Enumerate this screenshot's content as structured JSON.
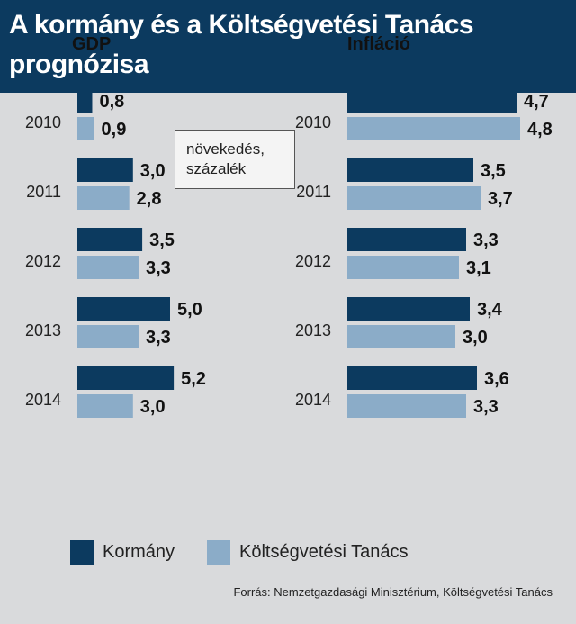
{
  "title": "A kormány és a Költségvetési Tanács prognózisa",
  "unit_note": [
    "növekedés,",
    "százalék"
  ],
  "colors": {
    "header": "#0c3a5f",
    "kormany": "#0c3a5f",
    "tanacs": "#8bacc8",
    "background": "#d9dadc"
  },
  "legend": [
    {
      "label": "Kormány",
      "color": "#0c3a5f"
    },
    {
      "label": "Költségvetési Tanács",
      "color": "#8bacc8"
    }
  ],
  "source": "Forrás: Nemzetgazdasági Minisztérium, Költségvetési Tanács",
  "chart_data": [
    {
      "type": "bar",
      "orientation": "horizontal",
      "title": "GDP",
      "categories": [
        "2010",
        "2011",
        "2012",
        "2013",
        "2014"
      ],
      "series": [
        {
          "name": "Kormány",
          "values": [
            0.8,
            3.0,
            3.5,
            5.0,
            5.2
          ],
          "labels": [
            "0,8",
            "3,0",
            "3,5",
            "5,0",
            "5,2"
          ]
        },
        {
          "name": "Költségvetési Tanács",
          "values": [
            0.9,
            2.8,
            3.3,
            3.3,
            3.0
          ],
          "labels": [
            "0,9",
            "2,8",
            "3,3",
            "3,3",
            "3,0"
          ]
        }
      ]
    },
    {
      "type": "bar",
      "orientation": "horizontal",
      "title": "Infláció",
      "categories": [
        "2010",
        "2011",
        "2012",
        "2013",
        "2014"
      ],
      "series": [
        {
          "name": "Kormány",
          "values": [
            4.7,
            3.5,
            3.3,
            3.4,
            3.6
          ],
          "labels": [
            "4,7",
            "3,5",
            "3,3",
            "3,4",
            "3,6"
          ]
        },
        {
          "name": "Költségvetési Tanács",
          "values": [
            4.8,
            3.7,
            3.1,
            3.0,
            3.3
          ],
          "labels": [
            "4,8",
            "3,7",
            "3,1",
            "3,0",
            "3,3"
          ]
        }
      ]
    }
  ]
}
